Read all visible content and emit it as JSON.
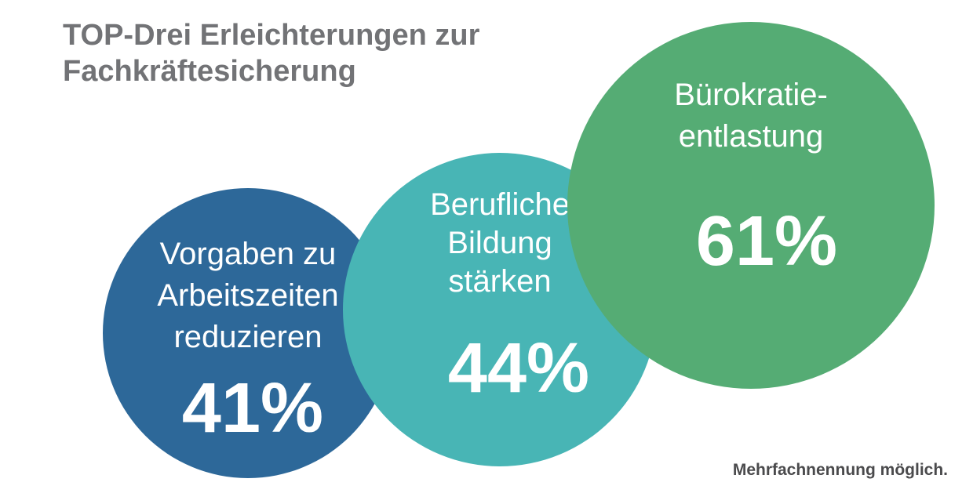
{
  "title": {
    "line1": "TOP-Drei Erleichterungen zur",
    "line2": "Fachkräftesicherung"
  },
  "footnote": "Mehrfachnennung möglich.",
  "chart_data": {
    "type": "bubble",
    "unit": "%",
    "items": [
      {
        "label_lines": [
          "Vorgaben zu",
          "Arbeitszeiten",
          "reduzieren"
        ],
        "value": 41,
        "value_label": "41%",
        "color": "#2d6899"
      },
      {
        "label_lines": [
          "Berufliche",
          "Bildung",
          "stärken"
        ],
        "value": 44,
        "value_label": "44%",
        "color": "#48b5b5"
      },
      {
        "label_lines": [
          "Bürokratie-",
          "entlastung"
        ],
        "value": 61,
        "value_label": "61%",
        "color": "#55ac74"
      }
    ]
  }
}
